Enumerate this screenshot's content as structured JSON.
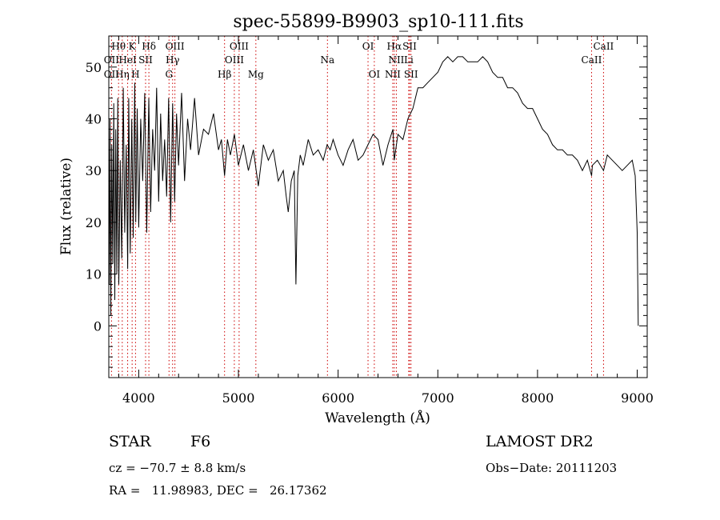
{
  "chart_data": {
    "type": "line",
    "title": "spec-55899-B9903_sp10-111.fits",
    "xlabel": "Wavelength (Å)",
    "ylabel": "Flux (relative)",
    "xlim": [
      3700,
      9100
    ],
    "ylim": [
      -10,
      56
    ],
    "xticks": [
      "4000",
      "5000",
      "6000",
      "7000",
      "8000",
      "9000"
    ],
    "yticks": [
      "0",
      "10",
      "20",
      "30",
      "40",
      "50"
    ],
    "grid": false,
    "line_color": "#000000",
    "marker_color": "#cc0000",
    "series": [
      {
        "x": [
          3705,
          3712,
          3720,
          3730,
          3740,
          3750,
          3760,
          3770,
          3780,
          3790,
          3800,
          3815,
          3830,
          3845,
          3860,
          3875,
          3889,
          3900,
          3915,
          3930,
          3945,
          3960,
          3970,
          3985,
          4000,
          4020,
          4040,
          4060,
          4080,
          4101,
          4120,
          4140,
          4160,
          4180,
          4200,
          4220,
          4240,
          4260,
          4280,
          4300,
          4320,
          4340,
          4360,
          4380,
          4400,
          4430,
          4460,
          4490,
          4520,
          4560,
          4600,
          4650,
          4700,
          4750,
          4800,
          4830,
          4861,
          4890,
          4920,
          4960,
          5000,
          5050,
          5100,
          5150,
          5200,
          5250,
          5300,
          5350,
          5400,
          5450,
          5480,
          5500,
          5530,
          5560,
          5577,
          5595,
          5620,
          5650,
          5700,
          5750,
          5800,
          5850,
          5890,
          5920,
          5950,
          6000,
          6050,
          6100,
          6150,
          6200,
          6250,
          6300,
          6350,
          6400,
          6450,
          6500,
          6550,
          6563,
          6600,
          6650,
          6700,
          6750,
          6800,
          6850,
          6900,
          6950,
          7000,
          7050,
          7100,
          7150,
          7200,
          7250,
          7300,
          7350,
          7400,
          7450,
          7500,
          7550,
          7600,
          7650,
          7700,
          7750,
          7800,
          7850,
          7900,
          7950,
          8000,
          8050,
          8100,
          8150,
          8200,
          8250,
          8300,
          8350,
          8400,
          8450,
          8500,
          8542,
          8550,
          8600,
          8662,
          8700,
          8750,
          8800,
          8850,
          8900,
          8950,
          8980,
          9000,
          9010
        ],
        "y": [
          8,
          40,
          2,
          35,
          12,
          43,
          5,
          38,
          10,
          44,
          8,
          32,
          13,
          46,
          18,
          35,
          11,
          44,
          14,
          40,
          17,
          47,
          20,
          42,
          19,
          40,
          28,
          45,
          18,
          44,
          22,
          38,
          30,
          46,
          24,
          41,
          28,
          36,
          25,
          44,
          20,
          43,
          24,
          41,
          31,
          45,
          28,
          40,
          34,
          44,
          33,
          38,
          37,
          41,
          34,
          36,
          29,
          36,
          33,
          37,
          31,
          35,
          30,
          34,
          27,
          35,
          32,
          34,
          28,
          30,
          25,
          22,
          28,
          30,
          8,
          29,
          33,
          31,
          36,
          33,
          34,
          32,
          35,
          34,
          36,
          33,
          31,
          34,
          36,
          32,
          33,
          35,
          37,
          36,
          31,
          35,
          38,
          32,
          37,
          36,
          40,
          42,
          46,
          46,
          47,
          48,
          49,
          51,
          52,
          51,
          52,
          52,
          51,
          51,
          51,
          52,
          51,
          49,
          48,
          48,
          46,
          46,
          45,
          43,
          42,
          42,
          40,
          38,
          37,
          35,
          34,
          34,
          33,
          33,
          32,
          30,
          32,
          29,
          31,
          32,
          30,
          33,
          32,
          31,
          30,
          31,
          32,
          29,
          18,
          0
        ],
        "note_y_units": "relative flux"
      }
    ],
    "annotations": [
      {
        "label": "Hθ",
        "x": 3798,
        "row": 1
      },
      {
        "label": "K",
        "x": 3934,
        "row": 1
      },
      {
        "label": "Hδ",
        "x": 4102,
        "row": 1
      },
      {
        "label": "OIII",
        "x": 4363,
        "row": 1
      },
      {
        "label": "OIII",
        "x": 5007,
        "row": 1
      },
      {
        "label": "OI",
        "x": 6300,
        "row": 1
      },
      {
        "label": "Hα",
        "x": 6563,
        "row": 1
      },
      {
        "label": "SII",
        "x": 6717,
        "row": 1
      },
      {
        "label": "CaII",
        "x": 8662,
        "row": 1
      },
      {
        "label": "OII",
        "x": 3727,
        "row": 2
      },
      {
        "label": "HeI",
        "x": 3889,
        "row": 2
      },
      {
        "label": "SII",
        "x": 4069,
        "row": 2
      },
      {
        "label": "Hγ",
        "x": 4340,
        "row": 2
      },
      {
        "label": "OIII",
        "x": 4959,
        "row": 2
      },
      {
        "label": "Na",
        "x": 5893,
        "row": 2
      },
      {
        "label": "NII",
        "x": 6584,
        "row": 2
      },
      {
        "label": "Li",
        "x": 6708,
        "row": 2
      },
      {
        "label": "CaII",
        "x": 8542,
        "row": 2
      },
      {
        "label": "OII",
        "x": 3727,
        "row": 3
      },
      {
        "label": "Hη",
        "x": 3835,
        "row": 3
      },
      {
        "label": "H",
        "x": 3968,
        "row": 3
      },
      {
        "label": "G",
        "x": 4304,
        "row": 3
      },
      {
        "label": "Hβ",
        "x": 4861,
        "row": 3
      },
      {
        "label": "Mg",
        "x": 5175,
        "row": 3
      },
      {
        "label": "OI",
        "x": 6363,
        "row": 3
      },
      {
        "label": "NII",
        "x": 6548,
        "row": 3
      },
      {
        "label": "SII",
        "x": 6731,
        "row": 3
      }
    ]
  },
  "info": {
    "class": "STAR",
    "subclass": "F6",
    "survey": "LAMOST DR2",
    "cz": "cz = −70.7 ± 8.8 km/s",
    "obs_date": "Obs−Date: 20111203",
    "coords": "RA =   11.98983, DEC =   26.17362"
  }
}
